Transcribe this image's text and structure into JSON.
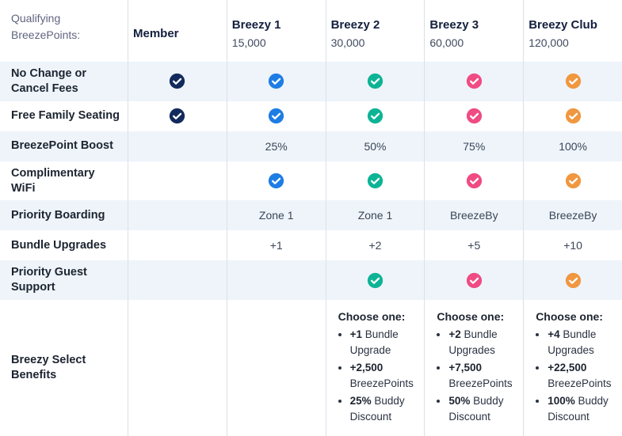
{
  "table": {
    "corner_label": "Qualifying BreezePoints:",
    "tiers": [
      {
        "name": "Member",
        "points": "",
        "check_color": "#122a5c"
      },
      {
        "name": "Breezy 1",
        "points": "15,000",
        "check_color": "#1e7de4"
      },
      {
        "name": "Breezy 2",
        "points": "30,000",
        "check_color": "#0cb495"
      },
      {
        "name": "Breezy 3",
        "points": "60,000",
        "check_color": "#f04b82"
      },
      {
        "name": "Breezy Club",
        "points": "120,000",
        "check_color": "#f0973f"
      }
    ],
    "rows": [
      {
        "label": "No Change or Cancel Fees",
        "cells": [
          "check",
          "check",
          "check",
          "check",
          "check"
        ]
      },
      {
        "label": "Free Family Seating",
        "cells": [
          "check",
          "check",
          "check",
          "check",
          "check"
        ]
      },
      {
        "label": "BreezePoint Boost",
        "cells": [
          "",
          "25%",
          "50%",
          "75%",
          "100%"
        ]
      },
      {
        "label": "Complimentary WiFi",
        "cells": [
          "",
          "check",
          "check",
          "check",
          "check"
        ]
      },
      {
        "label": "Priority Boarding",
        "cells": [
          "",
          "Zone 1",
          "Zone 1",
          "BreezeBy",
          "BreezeBy"
        ]
      },
      {
        "label": "Bundle Upgrades",
        "cells": [
          "",
          "+1",
          "+2",
          "+5",
          "+10"
        ]
      },
      {
        "label": "Priority Guest Support",
        "cells": [
          "",
          "",
          "check",
          "check",
          "check"
        ]
      },
      {
        "label": "Breezy Select Benefits",
        "cells": [
          "",
          "",
          {
            "title": "Choose one:",
            "items": [
              [
                "+1",
                "Bundle Upgrade"
              ],
              [
                "+2,500",
                "BreezePoints"
              ],
              [
                "25%",
                "Buddy Discount"
              ]
            ]
          },
          {
            "title": "Choose one:",
            "items": [
              [
                "+2",
                "Bundle Upgrades"
              ],
              [
                "+7,500",
                "BreezePoints"
              ],
              [
                "50%",
                "Buddy Discount"
              ]
            ]
          },
          {
            "title": "Choose one:",
            "items": [
              [
                "+4",
                "Bundle Upgrades"
              ],
              [
                "+22,500",
                "BreezePoints"
              ],
              [
                "100%",
                "Buddy Discount"
              ]
            ]
          }
        ]
      }
    ]
  },
  "colors": {
    "stripe_bg": "#eef4fa",
    "column_divider": "#dbe1e8",
    "tier_name_text": "#131f3e",
    "corner_label_text": "#5f647e",
    "row_label_text": "#1c2430",
    "value_text": "#3a4556",
    "check_glyph": "#ffffff"
  }
}
